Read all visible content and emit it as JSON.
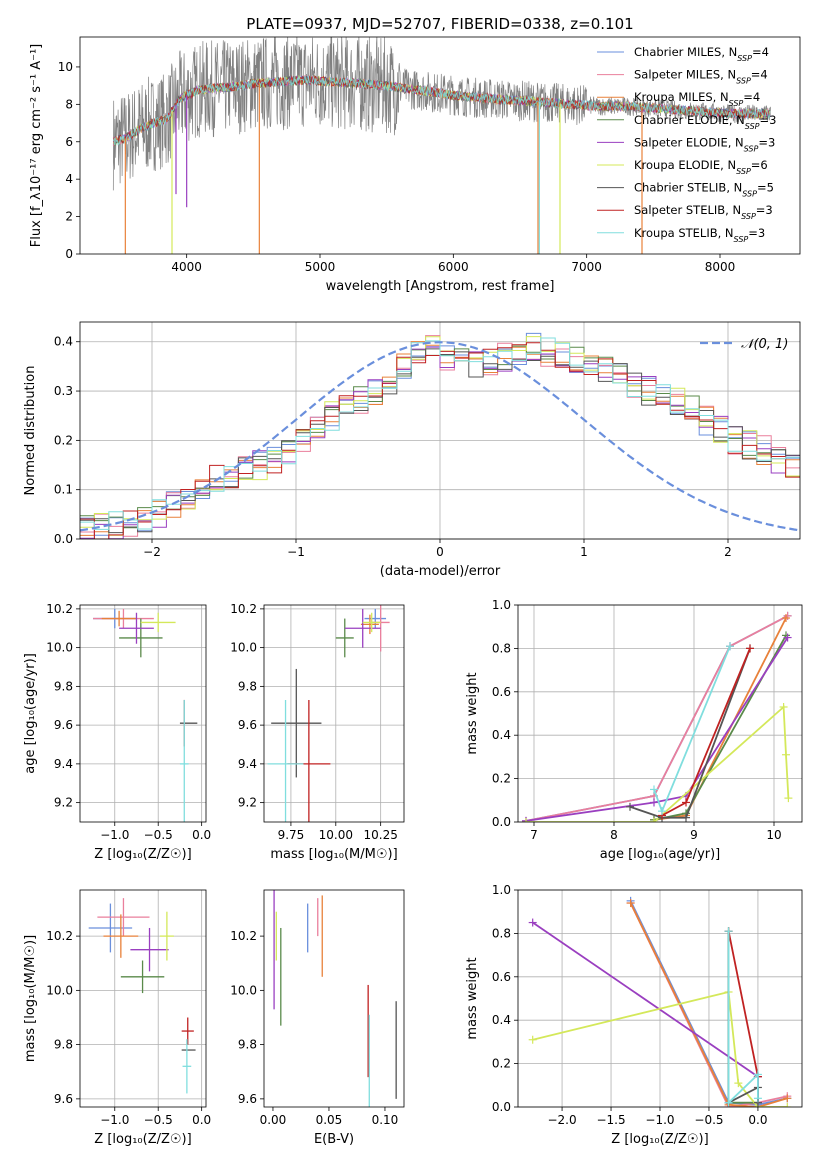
{
  "figure_title": "PLATE=0937, MJD=52707, FIBERID=0338, z=0.101",
  "colors": {
    "Chabrier MILES": "#6a8fdc",
    "Salpeter MILES": "#ea7f9c",
    "Kroupa MILES": "#e8813a",
    "Chabrier ELODIE": "#5a8a4a",
    "Salpeter ELODIE": "#9a3fc0",
    "Kroupa ELODIE": "#d4e85a",
    "Chabrier STELIB": "#555555",
    "Salpeter STELIB": "#c02222",
    "Kroupa STELIB": "#80dede",
    "data": "#808080",
    "gaussian": "#6a8fdc",
    "purple_line": "#9040a8",
    "grid": "#b0b0b0"
  },
  "chart_data": [
    {
      "id": "spectrum",
      "type": "line",
      "title": "PLATE=0937, MJD=52707, FIBERID=0338, z=0.101",
      "xlabel": "wavelength [Angstrom, rest frame]",
      "ylabel": "Flux [f_λ10⁻¹⁷ erg cm⁻² s⁻¹ A⁻¹]",
      "xlim": [
        3200,
        8600
      ],
      "ylim": [
        0,
        11.6
      ],
      "xticks": [
        "4000",
        "5000",
        "6000",
        "7000",
        "8000"
      ],
      "yticks": [
        "0",
        "2",
        "4",
        "6",
        "8",
        "10"
      ],
      "grid": false,
      "legend_position": "top-right",
      "legend": [
        {
          "label": "Chabrier MILES, N",
          "sub": "SSP",
          "suffix": "=4",
          "series": "Chabrier MILES"
        },
        {
          "label": "Salpeter MILES, N",
          "sub": "SSP",
          "suffix": "=4",
          "series": "Salpeter MILES"
        },
        {
          "label": "Kroupa MILES, N",
          "sub": "SSP",
          "suffix": "=4",
          "series": "Kroupa MILES"
        },
        {
          "label": "Chabrier ELODIE, N",
          "sub": "SSP",
          "suffix": "=3",
          "series": "Chabrier ELODIE"
        },
        {
          "label": "Salpeter ELODIE, N",
          "sub": "SSP",
          "suffix": "=3",
          "series": "Salpeter ELODIE"
        },
        {
          "label": "Kroupa ELODIE, N",
          "sub": "SSP",
          "suffix": "=6",
          "series": "Kroupa ELODIE"
        },
        {
          "label": "Chabrier STELIB, N",
          "sub": "SSP",
          "suffix": "=5",
          "series": "Chabrier STELIB"
        },
        {
          "label": "Salpeter STELIB, N",
          "sub": "SSP",
          "suffix": "=3",
          "series": "Salpeter STELIB"
        },
        {
          "label": "Kroupa STELIB, N",
          "sub": "SSP",
          "suffix": "=3",
          "series": "Kroupa STELIB"
        }
      ],
      "continuum": [
        [
          3450,
          6.0
        ],
        [
          3550,
          6.2
        ],
        [
          3650,
          6.7
        ],
        [
          3750,
          7.0
        ],
        [
          3850,
          7.2
        ],
        [
          3950,
          8.3
        ],
        [
          4100,
          8.8
        ],
        [
          4300,
          8.9
        ],
        [
          4500,
          9.1
        ],
        [
          4700,
          9.2
        ],
        [
          4900,
          9.3
        ],
        [
          5100,
          9.2
        ],
        [
          5300,
          9.1
        ],
        [
          5500,
          9.0
        ],
        [
          5700,
          8.8
        ],
        [
          5900,
          8.6
        ],
        [
          6100,
          8.4
        ],
        [
          6300,
          8.3
        ],
        [
          6500,
          8.2
        ],
        [
          6700,
          8.1
        ],
        [
          6900,
          8.0
        ],
        [
          7100,
          7.9
        ],
        [
          7300,
          7.9
        ],
        [
          7500,
          7.8
        ],
        [
          7700,
          7.7
        ],
        [
          7900,
          7.6
        ],
        [
          8100,
          7.5
        ],
        [
          8300,
          7.5
        ]
      ],
      "dips": [
        {
          "series": "Kroupa MILES",
          "x": 3540,
          "y": 0
        },
        {
          "series": "Kroupa ELODIE",
          "x": 3890,
          "y": 0
        },
        {
          "series": "Kroupa MILES",
          "x": 4545,
          "y": 0
        },
        {
          "series": "Kroupa MILES",
          "x": 6635,
          "y": 0
        },
        {
          "series": "Kroupa STELIB",
          "x": 6645,
          "y": 0
        },
        {
          "series": "Kroupa ELODIE",
          "x": 6800,
          "y": 0
        },
        {
          "series": "Kroupa MILES",
          "x": 7415,
          "y": 0
        },
        {
          "series": "Salpeter ELODIE",
          "x": 3920,
          "y": 3.2
        },
        {
          "series": "Salpeter ELODIE",
          "x": 4000,
          "y": 2.5
        }
      ]
    },
    {
      "id": "residuals",
      "type": "bar",
      "xlabel": "(data-model)/error",
      "ylabel": "Normed distribution",
      "xlim": [
        -2.5,
        2.5
      ],
      "ylim": [
        0,
        0.44
      ],
      "xticks": [
        "−2",
        "−1",
        "0",
        "1",
        "2"
      ],
      "yticks": [
        "0.0",
        "0.1",
        "0.2",
        "0.3",
        "0.4"
      ],
      "grid": true,
      "legend_position": "top-right",
      "legend_label": "𝒩(0, 1)",
      "bin_width": 0.1,
      "base_histogram": [
        0.02,
        0.025,
        0.03,
        0.032,
        0.04,
        0.05,
        0.07,
        0.09,
        0.11,
        0.12,
        0.13,
        0.14,
        0.15,
        0.16,
        0.18,
        0.2,
        0.22,
        0.25,
        0.27,
        0.28,
        0.3,
        0.32,
        0.35,
        0.38,
        0.39,
        0.37,
        0.36,
        0.35,
        0.36,
        0.37,
        0.38,
        0.39,
        0.38,
        0.37,
        0.36,
        0.35,
        0.34,
        0.33,
        0.31,
        0.3,
        0.29,
        0.28,
        0.26,
        0.24,
        0.22,
        0.2,
        0.19,
        0.18,
        0.16,
        0.15,
        0.14,
        0.13,
        0.12,
        0.11,
        0.1,
        0.09,
        0.08,
        0.07,
        0.06,
        0.055,
        0.05,
        0.045,
        0.04,
        0.035,
        0.03,
        0.028,
        0.025,
        0.022,
        0.02,
        0.018,
        0.015,
        0.012,
        0.01,
        0.01,
        0.01,
        0.01,
        0.01,
        0.01,
        0.01,
        0.01,
        0.01,
        0.01,
        0.01,
        0.01,
        0.01,
        0.01,
        0.01,
        0.01,
        0.01,
        0.01,
        0.01,
        0.01,
        0.01,
        0.01,
        0.01,
        0.01,
        0.01,
        0.01,
        0.01,
        0.01
      ],
      "gaussian": {
        "mean": 0,
        "sigma": 1
      }
    },
    {
      "id": "age-vs-Z",
      "type": "scatter",
      "xlabel": "Z [log₁₀(Z/Z☉)]",
      "ylabel": "age  [log₁₀(age/yr)]",
      "xlim": [
        -1.4,
        0.05
      ],
      "ylim": [
        9.1,
        10.22
      ],
      "xticks": [
        "−1.0",
        "−0.5",
        "0.0"
      ],
      "yticks": [
        "9.2",
        "9.4",
        "9.6",
        "9.8",
        "10.0",
        "10.2"
      ],
      "grid": true,
      "points": [
        {
          "series": "Chabrier MILES",
          "x": -1.0,
          "y": 10.15,
          "xerr": 0.25,
          "yerr": 0.05
        },
        {
          "series": "Salpeter MILES",
          "x": -0.9,
          "y": 10.15,
          "xerr": 0.35,
          "yerr": 0.05
        },
        {
          "series": "Kroupa MILES",
          "x": -0.95,
          "y": 10.15,
          "xerr": 0.2,
          "yerr": 0.04
        },
        {
          "series": "Chabrier ELODIE",
          "x": -0.7,
          "y": 10.05,
          "xerr": 0.25,
          "yerr": 0.1
        },
        {
          "series": "Salpeter ELODIE",
          "x": -0.75,
          "y": 10.1,
          "xerr": 0.2,
          "yerr": 0.08
        },
        {
          "series": "Kroupa ELODIE",
          "x": -0.5,
          "y": 10.13,
          "xerr": 0.2,
          "yerr": 0.05
        },
        {
          "series": "Chabrier STELIB",
          "x": -0.15,
          "y": 9.61,
          "xerr": 0.1,
          "yerr": 0.0
        },
        {
          "series": "Salpeter STELIB",
          "x": -0.2,
          "y": 9.61,
          "xerr": 0.0,
          "yerr": 0.12
        },
        {
          "series": "Kroupa STELIB",
          "x": -0.2,
          "y": 9.4,
          "xerr": 0.05,
          "yerr": 0.33
        }
      ]
    },
    {
      "id": "age-vs-mass",
      "type": "scatter",
      "xlabel": "mass [log₁₀(M/M☉)]",
      "ylabel": "",
      "xlim": [
        9.6,
        10.38
      ],
      "ylim": [
        9.1,
        10.22
      ],
      "xticks": [
        "9.75",
        "10.00",
        "10.25"
      ],
      "yticks": [
        "9.2",
        "9.4",
        "9.6",
        "9.8",
        "10.0",
        "10.2"
      ],
      "grid": true,
      "points": [
        {
          "series": "Chabrier MILES",
          "x": 10.22,
          "y": 10.15,
          "xerr": 0.06,
          "yerr": 0.05
        },
        {
          "series": "Salpeter MILES",
          "x": 10.25,
          "y": 10.13,
          "xerr": 0.05,
          "yerr": 0.15
        },
        {
          "series": "Kroupa MILES",
          "x": 10.19,
          "y": 10.12,
          "xerr": 0.05,
          "yerr": 0.05
        },
        {
          "series": "Chabrier ELODIE",
          "x": 10.05,
          "y": 10.05,
          "xerr": 0.05,
          "yerr": 0.1
        },
        {
          "series": "Salpeter ELODIE",
          "x": 10.15,
          "y": 10.1,
          "xerr": 0.1,
          "yerr": 0.1
        },
        {
          "series": "Kroupa ELODIE",
          "x": 10.2,
          "y": 10.13,
          "xerr": 0.05,
          "yerr": 0.05
        },
        {
          "series": "Chabrier STELIB",
          "x": 9.78,
          "y": 9.61,
          "xerr": 0.14,
          "yerr": 0.28
        },
        {
          "series": "Salpeter STELIB",
          "x": 9.85,
          "y": 9.4,
          "xerr": 0.12,
          "yerr": 0.33
        },
        {
          "series": "Kroupa STELIB",
          "x": 9.72,
          "y": 9.4,
          "xerr": 0.1,
          "yerr": 0.33
        }
      ]
    },
    {
      "id": "weight-vs-age",
      "type": "line",
      "xlabel": "age  [log₁₀(age/yr)]",
      "ylabel": "mass weight",
      "xlim": [
        6.8,
        10.35
      ],
      "ylim": [
        0,
        1
      ],
      "xticks": [
        "7",
        "8",
        "9",
        "10"
      ],
      "yticks": [
        "0.0",
        "0.2",
        "0.4",
        "0.6",
        "0.8",
        "1.0"
      ],
      "grid": true,
      "series": [
        {
          "series": "Chabrier MILES",
          "x": [
            6.9,
            8.5,
            9.45,
            10.17
          ],
          "y": [
            0.005,
            0.12,
            0.81,
            0.95
          ]
        },
        {
          "series": "Salpeter MILES",
          "x": [
            6.9,
            8.5,
            9.45,
            10.17
          ],
          "y": [
            0.005,
            0.12,
            0.81,
            0.95
          ]
        },
        {
          "series": "Kroupa MILES",
          "x": [
            8.5,
            8.9,
            10.15
          ],
          "y": [
            0.01,
            0.03,
            0.94
          ]
        },
        {
          "series": "Chabrier ELODIE",
          "x": [
            8.5,
            8.9,
            10.15
          ],
          "y": [
            0.01,
            0.04,
            0.86
          ]
        },
        {
          "series": "Salpeter ELODIE",
          "x": [
            6.9,
            8.5,
            8.9,
            10.17
          ],
          "y": [
            0.005,
            0.09,
            0.12,
            0.85
          ]
        },
        {
          "series": "Kroupa ELODIE",
          "x": [
            6.9,
            8.5,
            10.12,
            10.15,
            10.18
          ],
          "y": [
            0.0,
            0.0,
            0.53,
            0.31,
            0.11
          ]
        },
        {
          "series": "Chabrier STELIB",
          "x": [
            8.2,
            8.6,
            8.9,
            9.7
          ],
          "y": [
            0.07,
            0.02,
            0.02,
            0.8
          ]
        },
        {
          "series": "Salpeter STELIB",
          "x": [
            8.6,
            8.9,
            9.7
          ],
          "y": [
            0.03,
            0.09,
            0.8
          ]
        },
        {
          "series": "Kroupa STELIB",
          "x": [
            8.5,
            8.6,
            9.45
          ],
          "y": [
            0.15,
            0.05,
            0.81
          ]
        }
      ]
    },
    {
      "id": "mass-vs-Z",
      "type": "scatter",
      "xlabel": "Z [log₁₀(Z/Z☉)]",
      "ylabel": "mass [log₁₀(M/M☉)]",
      "xlim": [
        -1.4,
        0.05
      ],
      "ylim": [
        9.57,
        10.37
      ],
      "xticks": [
        "−1.0",
        "−0.5",
        "0.0"
      ],
      "yticks": [
        "9.6",
        "9.8",
        "10.0",
        "10.2"
      ],
      "grid": true,
      "points": [
        {
          "series": "Chabrier MILES",
          "x": -1.05,
          "y": 10.23,
          "xerr": 0.25,
          "yerr": 0.09
        },
        {
          "series": "Salpeter MILES",
          "x": -0.9,
          "y": 10.27,
          "xerr": 0.3,
          "yerr": 0.07
        },
        {
          "series": "Kroupa MILES",
          "x": -0.93,
          "y": 10.2,
          "xerr": 0.2,
          "yerr": 0.08
        },
        {
          "series": "Chabrier ELODIE",
          "x": -0.68,
          "y": 10.05,
          "xerr": 0.25,
          "yerr": 0.06
        },
        {
          "series": "Salpeter ELODIE",
          "x": -0.6,
          "y": 10.15,
          "xerr": 0.22,
          "yerr": 0.08
        },
        {
          "series": "Kroupa ELODIE",
          "x": -0.4,
          "y": 10.2,
          "xerr": 0.08,
          "yerr": 0.09
        },
        {
          "series": "Chabrier STELIB",
          "x": -0.15,
          "y": 9.78,
          "xerr": 0.08,
          "yerr": 0.0
        },
        {
          "series": "Salpeter STELIB",
          "x": -0.16,
          "y": 9.85,
          "xerr": 0.07,
          "yerr": 0.05
        },
        {
          "series": "Kroupa STELIB",
          "x": -0.17,
          "y": 9.72,
          "xerr": 0.05,
          "yerr": 0.1
        }
      ]
    },
    {
      "id": "mass-vs-ebv",
      "type": "scatter",
      "xlabel": "E(B-V)",
      "ylabel": "",
      "xlim": [
        -0.008,
        0.117
      ],
      "ylim": [
        9.57,
        10.37
      ],
      "xticks": [
        "0.00",
        "0.05",
        "0.10"
      ],
      "yticks": [
        "9.6",
        "9.8",
        "10.0",
        "10.2"
      ],
      "grid": false,
      "points": [
        {
          "series": "Chabrier MILES",
          "x": 0.031,
          "y": 10.23,
          "yerr": 0.09
        },
        {
          "series": "Salpeter MILES",
          "x": 0.04,
          "y": 10.27,
          "yerr": 0.07
        },
        {
          "series": "Kroupa MILES",
          "x": 0.044,
          "y": 10.2,
          "yerr": 0.15
        },
        {
          "series": "Chabrier ELODIE",
          "x": 0.007,
          "y": 10.05,
          "yerr": 0.18
        },
        {
          "series": "Salpeter ELODIE",
          "x": 0.001,
          "y": 10.15,
          "yerr": 0.22
        },
        {
          "series": "Kroupa ELODIE",
          "x": 0.003,
          "y": 10.2,
          "yerr": 0.09
        },
        {
          "series": "Chabrier STELIB",
          "x": 0.11,
          "y": 9.78,
          "yerr": 0.18
        },
        {
          "series": "Salpeter STELIB",
          "x": 0.085,
          "y": 9.85,
          "yerr": 0.17
        },
        {
          "series": "Kroupa STELIB",
          "x": 0.086,
          "y": 9.72,
          "yerr": 0.19
        }
      ]
    },
    {
      "id": "weight-vs-Z",
      "type": "line",
      "xlabel": "Z [log₁₀(Z/Z☉)]",
      "ylabel": "mass weight",
      "xlim": [
        -2.45,
        0.45
      ],
      "ylim": [
        0,
        1
      ],
      "xticks": [
        "−2.0",
        "−1.5",
        "−1.0",
        "−0.5",
        "0.0"
      ],
      "yticks": [
        "0.0",
        "0.2",
        "0.4",
        "0.6",
        "0.8",
        "1.0"
      ],
      "grid": true,
      "series": [
        {
          "series": "Chabrier MILES",
          "x": [
            -1.3,
            -0.3,
            0.0,
            0.3
          ],
          "y": [
            0.95,
            0.02,
            0.01,
            0.04
          ]
        },
        {
          "series": "Salpeter MILES",
          "x": [
            -1.3,
            -0.3,
            0.0,
            0.3
          ],
          "y": [
            0.94,
            0.0,
            0.02,
            0.05
          ]
        },
        {
          "series": "Kroupa MILES",
          "x": [
            -1.3,
            -0.3,
            0.0,
            0.3
          ],
          "y": [
            0.94,
            0.01,
            0.0,
            0.04
          ]
        },
        {
          "series": "Chabrier ELODIE",
          "x": [
            -0.3,
            -0.3,
            0.0,
            0.0
          ],
          "y": [
            0.81,
            0.02,
            0.02,
            0.14
          ]
        },
        {
          "series": "Salpeter ELODIE",
          "x": [
            -2.3,
            0.0,
            0.0
          ],
          "y": [
            0.85,
            0.14,
            0.02
          ]
        },
        {
          "series": "Kroupa ELODIE",
          "x": [
            -2.3,
            -0.3,
            -0.2,
            0.0,
            0.3
          ],
          "y": [
            0.31,
            0.53,
            0.11,
            0.0,
            0.0
          ]
        },
        {
          "series": "Chabrier STELIB",
          "x": [
            -0.3,
            -0.3,
            0.0,
            0.0
          ],
          "y": [
            0.81,
            0.02,
            0.09,
            0.02
          ]
        },
        {
          "series": "Salpeter STELIB",
          "x": [
            -0.3,
            0.0
          ],
          "y": [
            0.81,
            0.14
          ]
        },
        {
          "series": "Kroupa STELIB",
          "x": [
            -0.3,
            -0.3,
            0.0,
            0.0
          ],
          "y": [
            0.81,
            0.02,
            0.15,
            0.04
          ]
        }
      ]
    }
  ]
}
